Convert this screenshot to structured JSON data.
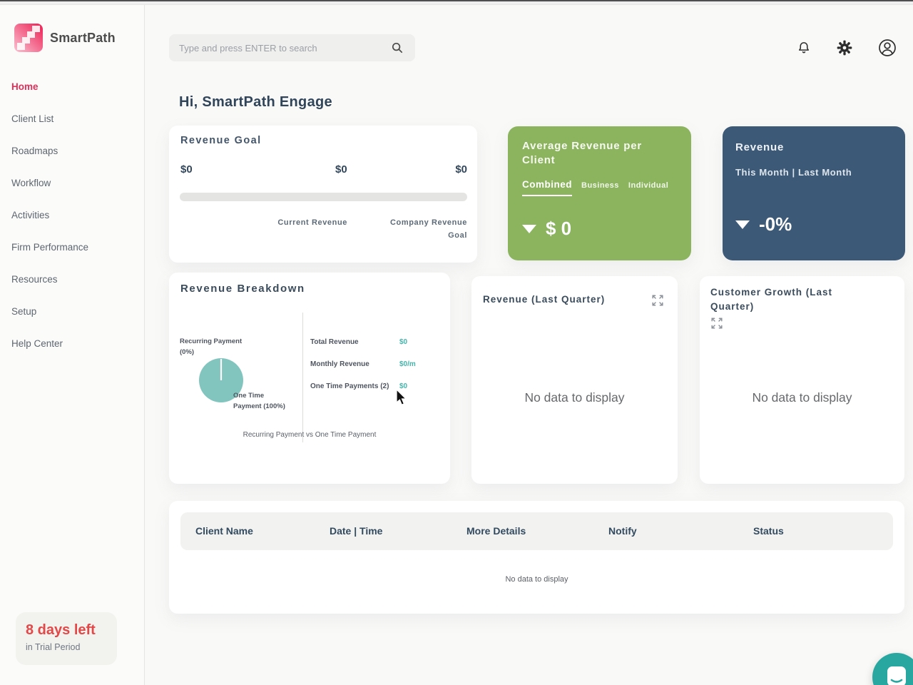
{
  "brand": {
    "name": "SmartPath"
  },
  "sidebar": {
    "items": [
      {
        "label": "Home",
        "active": true
      },
      {
        "label": "Client List"
      },
      {
        "label": "Roadmaps"
      },
      {
        "label": "Workflow"
      },
      {
        "label": "Activities"
      },
      {
        "label": "Firm Performance"
      },
      {
        "label": "Resources"
      },
      {
        "label": "Setup"
      },
      {
        "label": "Help Center"
      }
    ],
    "trial": {
      "title": "8 days left",
      "subtitle": "in Trial Period"
    }
  },
  "topbar": {
    "search_placeholder": "Type and press ENTER to search",
    "icons": [
      "search-icon",
      "bell-icon",
      "gear-icon",
      "profile-icon"
    ]
  },
  "main": {
    "greeting": "Hi, SmartPath Engage",
    "revenue_goal": {
      "title": "Revenue Goal",
      "value_left": "$0",
      "value_middle": "$0",
      "value_right": "$0",
      "progress_percent": 0,
      "label_current": "Current Revenue",
      "label_goal": "Company Revenue Goal"
    },
    "avg_revenue": {
      "title": "Average Revenue per Client",
      "tabs": [
        "Combined",
        "Business",
        "Individual"
      ],
      "active_tab": "Combined",
      "trend": "down",
      "value": "$ 0"
    },
    "revenue_month": {
      "title": "Revenue",
      "subtitle": "This Month | Last Month",
      "trend": "down",
      "value": "-0%"
    },
    "revenue_breakdown": {
      "title": "Revenue Breakdown",
      "label_recurring_1": "Recurring Payment",
      "label_recurring_2": "(0%)",
      "label_onetime_1": "One Time",
      "label_onetime_2": "Payment (100%)",
      "stats": [
        {
          "label": "Total Revenue",
          "value": "$0"
        },
        {
          "label": "Monthly Revenue",
          "value": "$0/m"
        },
        {
          "label": "One Time Payments (2)",
          "value": "$0"
        }
      ],
      "caption": "Recurring Payment vs One Time Payment"
    },
    "revenue_last_quarter": {
      "title": "Revenue (Last Quarter)",
      "empty": "No data to display"
    },
    "customer_growth": {
      "title": "Customer Growth (Last Quarter)",
      "empty": "No data to display"
    },
    "table": {
      "headers": [
        "Client Name",
        "Date | Time",
        "More Details",
        "Notify",
        "Status"
      ],
      "rows": [],
      "empty": "No data to display"
    }
  },
  "colors": {
    "brand_pink": "#ee2e5f",
    "nav_active": "#e0305a",
    "navy_text": "#33475c",
    "green_card": "#8cb45f",
    "blue_card": "#3c5977",
    "teal_accent": "#46b4ab",
    "pie_teal": "#82c5bf",
    "trial_red": "#e24848",
    "chat_teal": "#28a7a1"
  },
  "chart_data": {
    "type": "pie",
    "title": "Revenue Breakdown",
    "labels": [
      "Recurring Payment",
      "One Time Payment"
    ],
    "values": [
      0,
      100
    ],
    "unit": "%",
    "color": "#82c5bf",
    "caption": "Recurring Payment vs One Time Payment",
    "legend_position": "around-pie"
  }
}
